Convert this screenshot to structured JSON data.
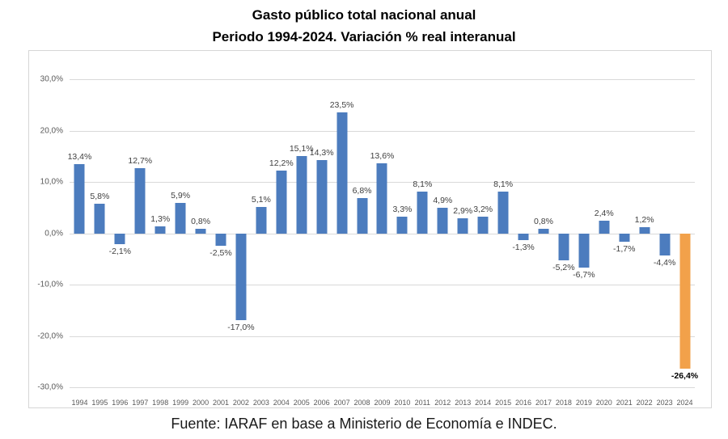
{
  "title_line1": "Gasto público total nacional anual",
  "title_line2": "Periodo 1994-2024. Variación % real interanual",
  "footer": "Fuente: IARAF en base a Ministerio de Economía e INDEC.",
  "chart_data": {
    "type": "bar",
    "title": "Gasto público total nacional anual. Periodo 1994-2024. Variación % real interanual",
    "xlabel": "",
    "ylabel": "",
    "categories": [
      "1994",
      "1995",
      "1996",
      "1997",
      "1998",
      "1999",
      "2000",
      "2001",
      "2002",
      "2003",
      "2004",
      "2005",
      "2006",
      "2007",
      "2008",
      "2009",
      "2010",
      "2011",
      "2012",
      "2013",
      "2014",
      "2015",
      "2016",
      "2017",
      "2018",
      "2019",
      "2020",
      "2021",
      "2022",
      "2023",
      "2024"
    ],
    "values": [
      13.4,
      5.8,
      -2.1,
      12.7,
      1.3,
      5.9,
      0.8,
      -2.5,
      -17.0,
      5.1,
      12.2,
      15.1,
      14.3,
      23.5,
      6.8,
      13.6,
      3.3,
      8.1,
      4.9,
      2.9,
      3.2,
      8.1,
      -1.3,
      0.8,
      -5.2,
      -6.7,
      2.4,
      -1.7,
      1.2,
      -4.4,
      -26.4
    ],
    "labels": [
      "13,4%",
      "5,8%",
      "-2,1%",
      "12,7%",
      "1,3%",
      "5,9%",
      "0,8%",
      "-2,5%",
      "-17,0%",
      "5,1%",
      "12,2%",
      "15,1%",
      "14,3%",
      "23,5%",
      "6,8%",
      "13,6%",
      "3,3%",
      "8,1%",
      "4,9%",
      "2,9%",
      "3,2%",
      "8,1%",
      "-1,3%",
      "0,8%",
      "-5,2%",
      "-6,7%",
      "2,4%",
      "-1,7%",
      "1,2%",
      "-4,4%",
      "-26,4%"
    ],
    "ylim": [
      -30,
      30
    ],
    "yticks": [
      30,
      20,
      10,
      0,
      -10,
      -20,
      -30
    ],
    "ytick_labels": [
      "30,0%",
      "20,0%",
      "10,0%",
      "0,0%",
      "-10,0%",
      "-20,0%",
      "-30,0%"
    ],
    "grid": true,
    "legend": "none",
    "bar_color": "#4c7cbe",
    "highlight_color": "#f2a14a",
    "highlight_index": 30
  }
}
